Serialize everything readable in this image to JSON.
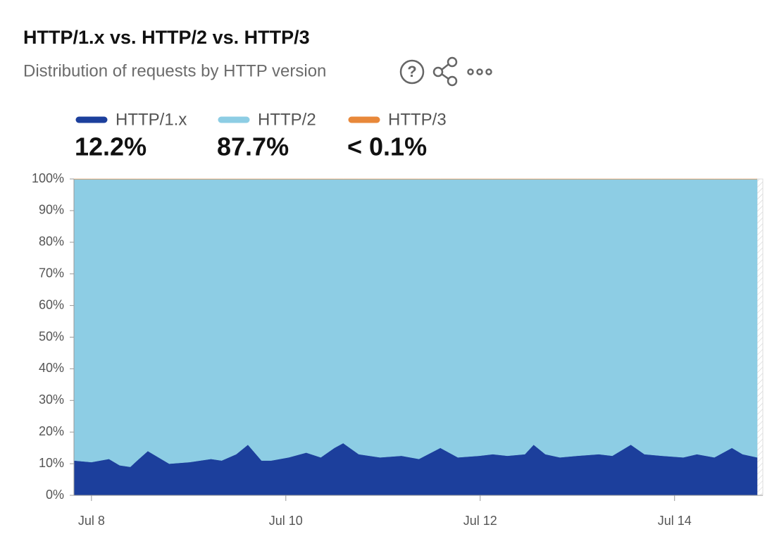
{
  "chart_data": {
    "type": "stacked-area",
    "title": "HTTP/1.x vs. HTTP/2 vs. HTTP/3",
    "subtitle": "Distribution of requests by HTTP version",
    "x": [
      7.82,
      8.0,
      8.18,
      8.29,
      8.4,
      8.47,
      8.58,
      8.69,
      8.8,
      9.01,
      9.23,
      9.34,
      9.49,
      9.61,
      9.75,
      9.85,
      10.03,
      10.21,
      10.36,
      10.5,
      10.59,
      10.75,
      10.97,
      11.19,
      11.37,
      11.59,
      11.77,
      11.99,
      12.13,
      12.28,
      12.46,
      12.55,
      12.67,
      12.82,
      13.0,
      13.22,
      13.36,
      13.55,
      13.69,
      13.87,
      14.09,
      14.23,
      14.41,
      14.59,
      14.7,
      14.85
    ],
    "series": [
      {
        "name": "HTTP/1.x",
        "color": "#1c3f9c",
        "share": {
          "value": 12.2,
          "label": "12.2%"
        },
        "values": [
          11,
          10.5,
          11.5,
          9.5,
          9,
          11,
          14,
          12,
          10,
          10.5,
          11.5,
          11,
          13,
          16,
          11,
          11,
          12,
          13.5,
          12,
          15,
          16.5,
          13,
          12,
          12.5,
          11.5,
          15,
          12,
          12.5,
          13,
          12.5,
          13,
          16,
          13,
          12,
          12.5,
          13,
          12.5,
          16,
          13,
          12.5,
          12,
          13,
          12,
          15,
          13,
          12
        ]
      },
      {
        "name": "HTTP/2",
        "color": "#8dcde4",
        "share": {
          "value": 87.7,
          "label": "87.7%"
        },
        "values": [
          88.95,
          89.45,
          88.45,
          90.45,
          90.95,
          88.95,
          85.95,
          87.95,
          89.95,
          89.45,
          88.45,
          88.95,
          86.95,
          83.95,
          88.95,
          88.95,
          87.95,
          86.45,
          87.95,
          84.95,
          83.45,
          86.95,
          87.95,
          87.45,
          88.45,
          84.95,
          87.95,
          87.45,
          86.95,
          87.45,
          86.95,
          83.95,
          86.95,
          87.95,
          87.45,
          86.95,
          87.45,
          83.95,
          86.95,
          87.45,
          87.95,
          86.95,
          87.95,
          84.95,
          86.95,
          87.95
        ]
      },
      {
        "name": "HTTP/3",
        "color": "#e8883a",
        "share": {
          "value": 0.1,
          "label": "< 0.1%"
        },
        "values": [
          0.05,
          0.05,
          0.05,
          0.05,
          0.05,
          0.05,
          0.05,
          0.05,
          0.05,
          0.05,
          0.05,
          0.05,
          0.05,
          0.05,
          0.05,
          0.05,
          0.05,
          0.05,
          0.05,
          0.05,
          0.05,
          0.05,
          0.05,
          0.05,
          0.05,
          0.05,
          0.05,
          0.05,
          0.05,
          0.05,
          0.05,
          0.05,
          0.05,
          0.05,
          0.05,
          0.05,
          0.05,
          0.05,
          0.05,
          0.05,
          0.05,
          0.05,
          0.05,
          0.05,
          0.05,
          0.05
        ]
      }
    ],
    "xlim": [
      7.82,
      14.85
    ],
    "xticks": [
      {
        "value": 8,
        "label": "Jul 8"
      },
      {
        "value": 10,
        "label": "Jul 10"
      },
      {
        "value": 12,
        "label": "Jul 12"
      },
      {
        "value": 14,
        "label": "Jul 14"
      }
    ],
    "ylim": [
      0,
      100
    ],
    "yticks": [
      {
        "value": 0,
        "label": "0%"
      },
      {
        "value": 10,
        "label": "10%"
      },
      {
        "value": 20,
        "label": "20%"
      },
      {
        "value": 30,
        "label": "30%"
      },
      {
        "value": 40,
        "label": "40%"
      },
      {
        "value": 50,
        "label": "50%"
      },
      {
        "value": 60,
        "label": "60%"
      },
      {
        "value": 70,
        "label": "70%"
      },
      {
        "value": 80,
        "label": "80%"
      },
      {
        "value": 90,
        "label": "90%"
      },
      {
        "value": 100,
        "label": "100%"
      }
    ]
  }
}
